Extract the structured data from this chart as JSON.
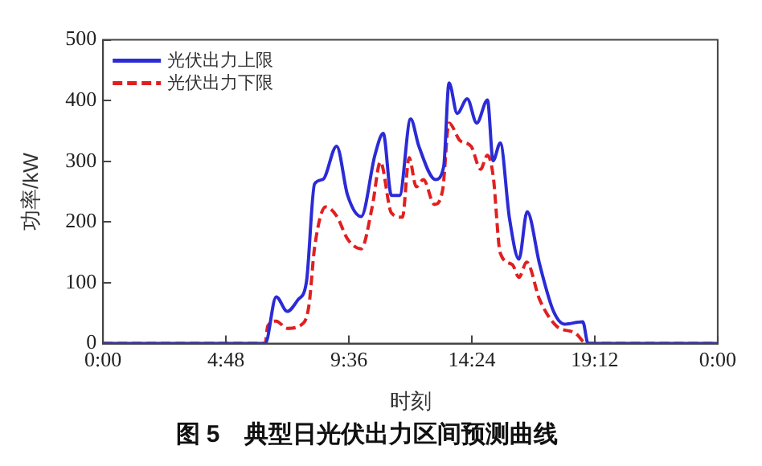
{
  "chart_data": {
    "type": "line",
    "title": "图 5　典型日光伏出力区间预测曲线",
    "xlabel": "时刻",
    "ylabel": "功率/kW",
    "xlim": [
      0,
      24
    ],
    "xticks": [
      {
        "value": 0,
        "label": "0:00"
      },
      {
        "value": 4.8,
        "label": "4:48"
      },
      {
        "value": 9.6,
        "label": "9:36"
      },
      {
        "value": 14.4,
        "label": "14:24"
      },
      {
        "value": 19.2,
        "label": "19:12"
      },
      {
        "value": 24,
        "label": "0:00"
      }
    ],
    "ylim": [
      0,
      500
    ],
    "yticks": [
      0,
      100,
      200,
      300,
      400,
      500
    ],
    "grid": false,
    "legend": "top left",
    "marker": "none",
    "series": [
      {
        "name": "光伏出力上限",
        "color": "#2b2bd6",
        "line_style": "solid",
        "x": [
          0,
          6.33,
          6.76,
          7.19,
          7.61,
          7.94,
          8.26,
          8.58,
          9.12,
          9.55,
          10.08,
          10.62,
          10.94,
          11.26,
          11.58,
          12.01,
          12.33,
          12.98,
          13.3,
          13.51,
          13.83,
          14.22,
          14.59,
          15.01,
          15.23,
          15.51,
          15.87,
          16.24,
          16.56,
          17.05,
          17.59,
          18.02,
          18.73,
          18.94,
          24
        ],
        "values": [
          0,
          0,
          77,
          53,
          72,
          101,
          263,
          270,
          325,
          244,
          209,
          311,
          346,
          244,
          244,
          370,
          325,
          270,
          291,
          429,
          379,
          403,
          363,
          401,
          301,
          330,
          206,
          139,
          217,
          130,
          53,
          32,
          36,
          0,
          0
        ]
      },
      {
        "name": "光伏出力下限",
        "color": "#e02020",
        "line_style": "dashed",
        "x": [
          0,
          6.33,
          6.43,
          6.76,
          7.19,
          7.83,
          8.04,
          8.26,
          8.69,
          9.12,
          9.55,
          10.08,
          10.51,
          10.83,
          11.26,
          11.69,
          11.95,
          12.23,
          12.51,
          12.94,
          13.26,
          13.51,
          13.94,
          14.37,
          14.74,
          15.01,
          15.23,
          15.51,
          15.98,
          16.24,
          16.54,
          17.05,
          17.7,
          18.45,
          18.88,
          24
        ],
        "values": [
          0,
          0,
          29,
          37,
          25,
          34,
          63,
          158,
          225,
          210,
          172,
          156,
          225,
          299,
          215,
          208,
          306,
          258,
          270,
          229,
          253,
          363,
          334,
          325,
          287,
          310,
          277,
          149,
          130,
          109,
          134,
          72,
          29,
          17,
          0,
          0
        ]
      }
    ]
  }
}
